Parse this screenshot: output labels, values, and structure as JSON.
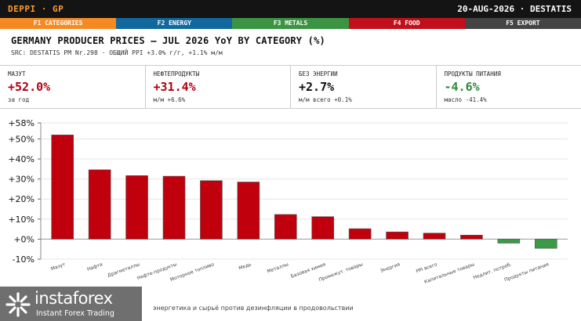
{
  "topbar": {
    "brand": "DEPPI · GP",
    "right": "20-AUG-2026 · DESTATIS"
  },
  "fkeys": [
    {
      "label": "F1 CATEGORIES",
      "color": "#f68a22"
    },
    {
      "label": "F2 ENERGY",
      "color": "#10689e"
    },
    {
      "label": "F3 METALS",
      "color": "#3b9343"
    },
    {
      "label": "F4 FOOD",
      "color": "#c1101b"
    },
    {
      "label": "F5 EXPORT",
      "color": "#444444"
    }
  ],
  "header": {
    "title": "GERMANY PRODUCER PRICES — JUL 2026 YoY BY CATEGORY (%)",
    "src": "SRC: DESTATIS PM Nr.298 · ОБЩИЙ PPI +3.0% г/г, +1.1% м/м"
  },
  "kpis": [
    {
      "label": "МАЗУТ",
      "value": "+52.0%",
      "sub": "за год",
      "color": "#b00010"
    },
    {
      "label": "НЕФТЕПРОДУКТЫ",
      "value": "+31.4%",
      "sub": "м/м +6.6%",
      "color": "#b00010"
    },
    {
      "label": "БЕЗ ЭНЕРГИИ",
      "value": "+2.7%",
      "sub": "м/м всего +0.1%",
      "color": "#111111"
    },
    {
      "label": "ПРОДУКТЫ ПИТАНИЯ",
      "value": "-4.6%",
      "sub": "масло -41.4%",
      "color": "#2e8b3a"
    }
  ],
  "chart_data": {
    "type": "bar",
    "categories": [
      "Мазут",
      "Нафта",
      "Драгметаллы",
      "Нефте-продукты",
      "Моторное топливо",
      "Медь",
      "Металлы",
      "Базовая химия",
      "Промежут. товары",
      "Энергия",
      "PPI всего",
      "Капитальные товары",
      "Недлит. потреб.",
      "Продукты питания"
    ],
    "values": [
      52.0,
      34.6,
      31.7,
      31.4,
      29.2,
      28.5,
      12.3,
      11.2,
      5.2,
      3.6,
      3.0,
      2.0,
      -2.0,
      -4.6
    ],
    "yticks": [
      "+58%",
      "+50%",
      "+40%",
      "+30%",
      "+20%",
      "+10%",
      "+0%",
      "-10%"
    ],
    "ylim": [
      -10,
      58
    ],
    "pos_color": "#c0000d",
    "neg_color": "#3a9a46",
    "grid": true
  },
  "footer": "энергетика и сырьё против дезинфляции в продовольствии",
  "logo": {
    "name": "instaforex",
    "tagline": "Instant Forex Trading"
  }
}
